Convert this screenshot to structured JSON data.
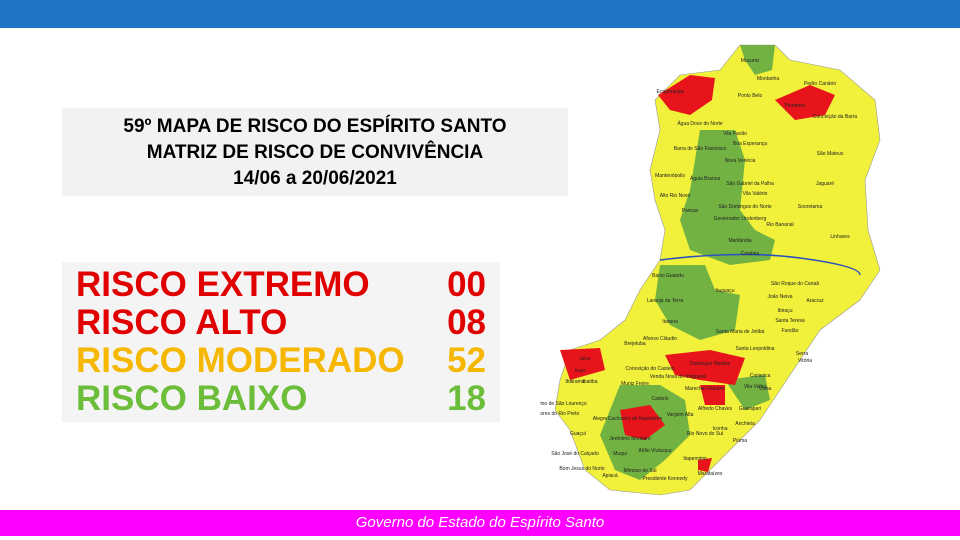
{
  "header": {
    "title_lines": [
      "59º MAPA DE RISCO DO ESPÍRITO SANTO",
      "MATRIZ DE RISCO DE CONVIVÊNCIA",
      "14/06 a 20/06/2021"
    ]
  },
  "risks": [
    {
      "label": "RISCO EXTREMO",
      "count": "00",
      "color": "#e00000"
    },
    {
      "label": "RISCO ALTO",
      "count": "08",
      "color": "#e00000"
    },
    {
      "label": "RISCO MODERADO",
      "count": "52",
      "color": "#f5b700"
    },
    {
      "label": "RISCO BAIXO",
      "count": "18",
      "color": "#6cbd3a"
    }
  ],
  "map": {
    "labels": [
      "Mucurici",
      "Montanha",
      "Pedro Canário",
      "Ecoporanga",
      "Ponto Belo",
      "Pinheiros",
      "Conceição da Barra",
      "Água Doce do Norte",
      "Vila Pavão",
      "Boa Esperança",
      "Barra de São Francisco",
      "Nova Venécia",
      "São Mateus",
      "Mantenópolis",
      "Águia Branca",
      "São Gabriel da Palha",
      "Vila Valério",
      "Jaguaré",
      "Alto Rio Novo",
      "São Domingos do Norte",
      "Sooretama",
      "Pancas",
      "Governador Lindenberg",
      "Rio Bananal",
      "Marilândia",
      "Linhares",
      "Colatina",
      "Baixo Guandu",
      "São Roque do Canaã",
      "João Neiva",
      "Aracruz",
      "Itaguaçu",
      "Ibiraçu",
      "Laranja da Terra",
      "Santa Teresa",
      "Fundão",
      "Itarana",
      "Afonso Cláudio",
      "Santa Maria de Jetibá",
      "Serra",
      "Brejetuba",
      "Santa Leopoldina",
      "Cariacica",
      "Vitória",
      "Iúna",
      "Conceição do Castelo",
      "Venda Nova do Imigrante",
      "Domingos Martins",
      "Vila Velha",
      "Ibatiba",
      "Muniz Freire",
      "Marechal Floriano",
      "Viana",
      "Irupi",
      "Ibitirama",
      "Castelo",
      "Alfredo Chaves",
      "Guarapari",
      "Divino de São Lourenço",
      "Dores do Rio Preto",
      "Alegre",
      "Cachoeiro de Itapemirim",
      "Vargem Alta",
      "Anchieta",
      "Guaçuí",
      "Jerônimo Monteiro",
      "Rio Novo do Sul",
      "Piúma",
      "Iconha",
      "São José do Calçado",
      "Muqui",
      "Itapemirim",
      "Bom Jesus do Norte",
      "Apiacá",
      "Mimoso do Sul",
      "Atílio Vivácqua",
      "Presidente Kennedy",
      "Marataízes"
    ]
  },
  "footer": {
    "text": "Governo do Estado do Espírito Santo"
  }
}
